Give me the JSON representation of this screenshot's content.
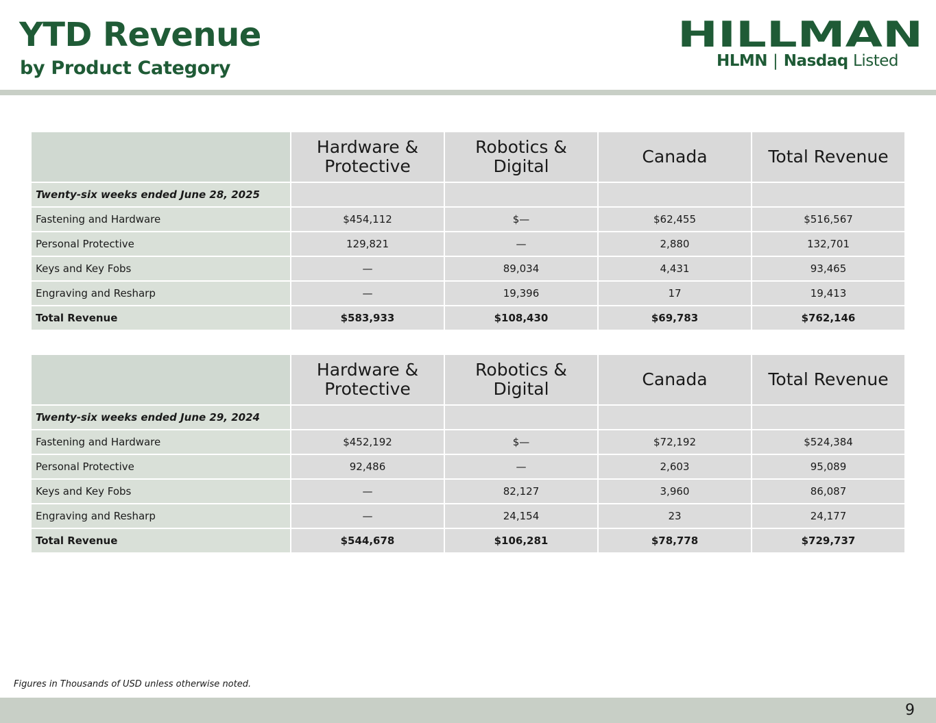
{
  "header": {
    "title": "YTD Revenue",
    "subtitle": "by Product Category"
  },
  "logo": {
    "wordmark": "HILLMAN",
    "ticker": "HLMN",
    "separator": "|",
    "exchange": "Nasdaq",
    "listed": "Listed",
    "color": "#1f5b36"
  },
  "columns": [
    "Hardware & Protective",
    "Robotics & Digital",
    "Canada",
    "Total Revenue"
  ],
  "column_lines": [
    [
      "Hardware &",
      "Protective"
    ],
    [
      "Robotics &",
      "Digital"
    ],
    [
      "Canada"
    ],
    [
      "Total Revenue"
    ]
  ],
  "tables": [
    {
      "period": "Twenty-six weeks ended June 28, 2025",
      "rows": [
        {
          "label": "Fastening and Hardware",
          "values": [
            "$454,112",
            "$—",
            "$62,455",
            "$516,567"
          ]
        },
        {
          "label": "Personal Protective",
          "values": [
            "129,821",
            "—",
            "2,880",
            "132,701"
          ]
        },
        {
          "label": "Keys and Key Fobs",
          "values": [
            "—",
            "89,034",
            "4,431",
            "93,465"
          ]
        },
        {
          "label": "Engraving and Resharp",
          "values": [
            "—",
            "19,396",
            "17",
            "19,413"
          ]
        }
      ],
      "total": {
        "label": "Total Revenue",
        "values": [
          "$583,933",
          "$108,430",
          "$69,783",
          "$762,146"
        ]
      }
    },
    {
      "period": "Twenty-six weeks ended June 29, 2024",
      "rows": [
        {
          "label": "Fastening and Hardware",
          "values": [
            "$452,192",
            "$—",
            "$72,192",
            "$524,384"
          ]
        },
        {
          "label": "Personal Protective",
          "values": [
            "92,486",
            "—",
            "2,603",
            "95,089"
          ]
        },
        {
          "label": "Keys and Key Fobs",
          "values": [
            "—",
            "82,127",
            "3,960",
            "86,087"
          ]
        },
        {
          "label": "Engraving and Resharp",
          "values": [
            "—",
            "24,154",
            "23",
            "24,177"
          ]
        }
      ],
      "total": {
        "label": "Total Revenue",
        "values": [
          "$544,678",
          "$106,281",
          "$78,778",
          "$729,737"
        ]
      }
    }
  ],
  "footnote": "Figures in Thousands of USD unless otherwise noted.",
  "page_number": "9",
  "colors": {
    "brand_green": "#1f5b36",
    "rule_gray": "#c8cfc6",
    "header_cell": "#d9d9d9",
    "label_cell": "#d9e0d8"
  }
}
